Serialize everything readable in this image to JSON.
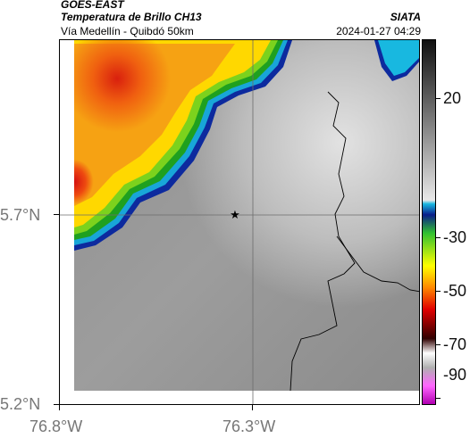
{
  "header": {
    "source": "GOES-EAST",
    "product": "Temperatura de Brillo CH13",
    "region": "Vía Medellín - Quibdó 50km",
    "org": "SIATA",
    "timestamp": "2024-01-27 04:29"
  },
  "axes": {
    "y_ticks": [
      "5.7°N",
      "5.2°N"
    ],
    "x_ticks": [
      "76.8°W",
      "76.3°W"
    ]
  },
  "colorbar": {
    "ticks": [
      "20",
      "-30",
      "-50",
      "-70",
      "-90"
    ],
    "colors": [
      "#202020",
      "#9a9a9a",
      "#d8d8d8",
      "#00c0e0",
      "#0000a0",
      "#00a000",
      "#ffff00",
      "#ff8000",
      "#e00000",
      "#600000",
      "#c0c0c0",
      "#ff00ff"
    ]
  },
  "map": {
    "marker": "station-star",
    "colors": {
      "warm": "#b5b5b5",
      "cold_core": "#e41e10",
      "edge": "#0d2a9e"
    }
  }
}
